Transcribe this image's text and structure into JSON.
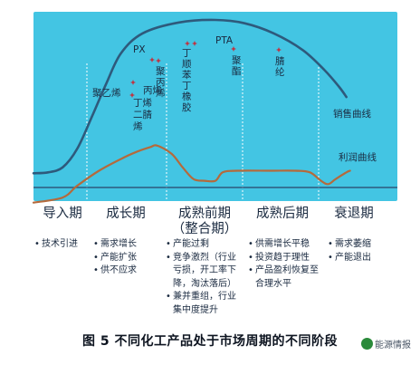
{
  "chart_data": {
    "type": "line",
    "caption": "图 5   不同化工产品处于市场周期的不同阶段",
    "x_stages": [
      {
        "key": "intro",
        "label": "导入期"
      },
      {
        "key": "growth",
        "label": "成长期"
      },
      {
        "key": "early_mature",
        "label": "成熟前期",
        "sublabel": "（整合期）"
      },
      {
        "key": "late_mature",
        "label": "成熟后期"
      },
      {
        "key": "decline",
        "label": "衰退期"
      }
    ],
    "series": [
      {
        "name": "销售曲线",
        "color": "#2e5a7c",
        "shape": [
          [
            0.0,
            0.085
          ],
          [
            0.04,
            0.09
          ],
          [
            0.08,
            0.12
          ],
          [
            0.12,
            0.23
          ],
          [
            0.16,
            0.42
          ],
          [
            0.2,
            0.62
          ],
          [
            0.24,
            0.8
          ],
          [
            0.3,
            0.92
          ],
          [
            0.4,
            0.985
          ],
          [
            0.5,
            1.0
          ],
          [
            0.58,
            0.98
          ],
          [
            0.66,
            0.92
          ],
          [
            0.74,
            0.82
          ],
          [
            0.8,
            0.7
          ],
          [
            0.84,
            0.6
          ],
          [
            0.86,
            0.54
          ]
        ]
      },
      {
        "name": "利润曲线",
        "color": "#b46a3c",
        "shape": [
          [
            0.0,
            -0.09
          ],
          [
            0.08,
            -0.06
          ],
          [
            0.12,
            0.01
          ],
          [
            0.18,
            0.1
          ],
          [
            0.24,
            0.17
          ],
          [
            0.28,
            0.21
          ],
          [
            0.32,
            0.24
          ],
          [
            0.34,
            0.25
          ],
          [
            0.38,
            0.2
          ],
          [
            0.41,
            0.12
          ],
          [
            0.44,
            0.05
          ],
          [
            0.47,
            0.04
          ],
          [
            0.5,
            0.04
          ],
          [
            0.52,
            0.09
          ],
          [
            0.56,
            0.1
          ],
          [
            0.65,
            0.1
          ],
          [
            0.72,
            0.1
          ],
          [
            0.76,
            0.09
          ],
          [
            0.79,
            0.04
          ],
          [
            0.81,
            0.02
          ],
          [
            0.83,
            0.05
          ],
          [
            0.86,
            0.09
          ],
          [
            0.87,
            0.1
          ]
        ]
      }
    ],
    "product_labels": [
      "聚乙烯",
      "PX",
      "丙烯",
      "丁烯",
      "二腈",
      "烯",
      "聚丙烯",
      "丁顺苯丁橡胶",
      "PTA",
      "聚酯",
      "腈纶"
    ],
    "stage_notes": {
      "intro": [
        "技术引进"
      ],
      "growth": [
        "需求增长",
        "产能扩张",
        "供不应求"
      ],
      "early_mature": [
        "产能过剩",
        "竞争激烈（行业亏损，开工率下降，淘汰落后）",
        "兼并重组，行业集中度提升"
      ],
      "late_mature": [
        "供需增长平稳",
        "投资趋于理性",
        "产品盈利恢复至合理水平"
      ],
      "decline": [
        "需求萎缩",
        "产能退出"
      ]
    },
    "grid": false,
    "colors": {
      "plot_bg": "#43c5e3",
      "baseline": "#2e5a7c",
      "divider": "#ffffff",
      "marker": "#c03340"
    }
  },
  "watermark": "能源情报"
}
